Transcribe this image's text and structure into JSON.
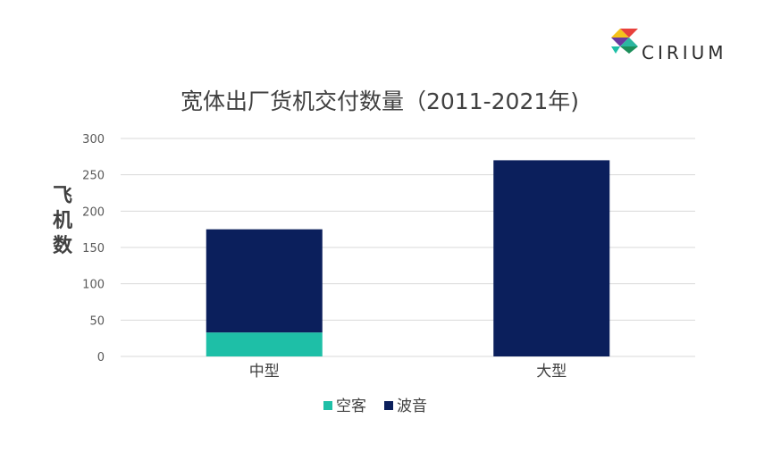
{
  "logo": {
    "text": "CIRIUM"
  },
  "colors": {
    "passenger": "#1ebfa7",
    "boeing": "#0b1f5c",
    "grid": "#d9d9d9",
    "axis_text": "#595959",
    "title": "#404040"
  },
  "chart_data": {
    "type": "bar",
    "stacked": true,
    "title": "宽体出厂货机交付数量（2011-2021年)",
    "xlabel": "",
    "ylabel": "飞机数",
    "ylim": [
      0,
      300
    ],
    "yticks": [
      0,
      50,
      100,
      150,
      200,
      250,
      300
    ],
    "categories": [
      "中型",
      "大型"
    ],
    "series": [
      {
        "name": "空客",
        "values": [
          33,
          0
        ],
        "color": "#1ebfa7"
      },
      {
        "name": "波音",
        "values": [
          142,
          270
        ],
        "color": "#0b1f5c"
      }
    ],
    "grid": true,
    "legend": "bottom"
  }
}
